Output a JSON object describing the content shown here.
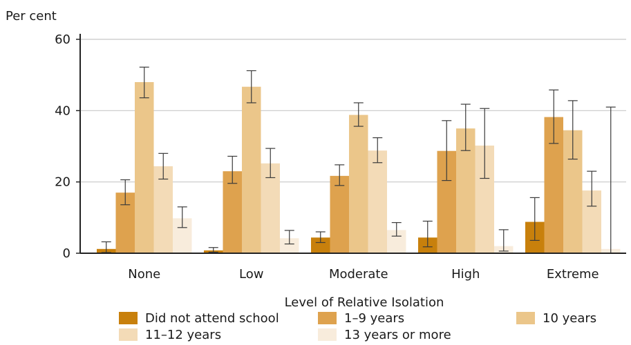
{
  "chart_data": {
    "type": "bar",
    "title": "",
    "ylabel": "Per cent",
    "xlabel": "Level of Relative Isolation",
    "ylim": [
      0,
      60
    ],
    "yticks": [
      0,
      20,
      40,
      60
    ],
    "grid": true,
    "legend_position": "bottom",
    "categories": [
      "None",
      "Low",
      "Moderate",
      "High",
      "Extreme"
    ],
    "series": [
      {
        "name": "Did not attend school",
        "color": "#c8800c",
        "values": [
          1.2,
          0.8,
          4.4,
          4.4,
          8.8
        ],
        "error_low": [
          0.2,
          0.3,
          3.0,
          1.8,
          3.6
        ],
        "error_high": [
          3.2,
          1.6,
          6.0,
          9.0,
          15.6
        ]
      },
      {
        "name": "1–9 years",
        "color": "#dea24e",
        "values": [
          17.0,
          23.0,
          21.7,
          28.7,
          38.2
        ],
        "error_low": [
          13.6,
          19.6,
          19.0,
          20.4,
          30.8
        ],
        "error_high": [
          20.6,
          27.2,
          24.8,
          37.2,
          45.8
        ]
      },
      {
        "name": "10 years",
        "color": "#ebc68a",
        "values": [
          48.0,
          46.7,
          38.8,
          35.0,
          34.5
        ],
        "error_low": [
          43.6,
          42.2,
          35.6,
          28.8,
          26.4
        ],
        "error_high": [
          52.2,
          51.2,
          42.2,
          41.8,
          42.8
        ]
      },
      {
        "name": "11–12 years",
        "color": "#f3dbb7",
        "values": [
          24.4,
          25.2,
          28.8,
          30.2,
          17.6
        ],
        "error_low": [
          20.8,
          21.2,
          25.4,
          21.0,
          13.2
        ],
        "error_high": [
          28.0,
          29.4,
          32.4,
          40.6,
          23.0
        ]
      },
      {
        "name": "13 years or more",
        "color": "#f8ecdc",
        "values": [
          9.8,
          4.2,
          6.5,
          2.0,
          1.2
        ],
        "error_low": [
          7.2,
          2.6,
          4.8,
          0.6,
          0.0
        ],
        "error_high": [
          13.0,
          6.4,
          8.6,
          6.6,
          41.0
        ]
      }
    ]
  }
}
